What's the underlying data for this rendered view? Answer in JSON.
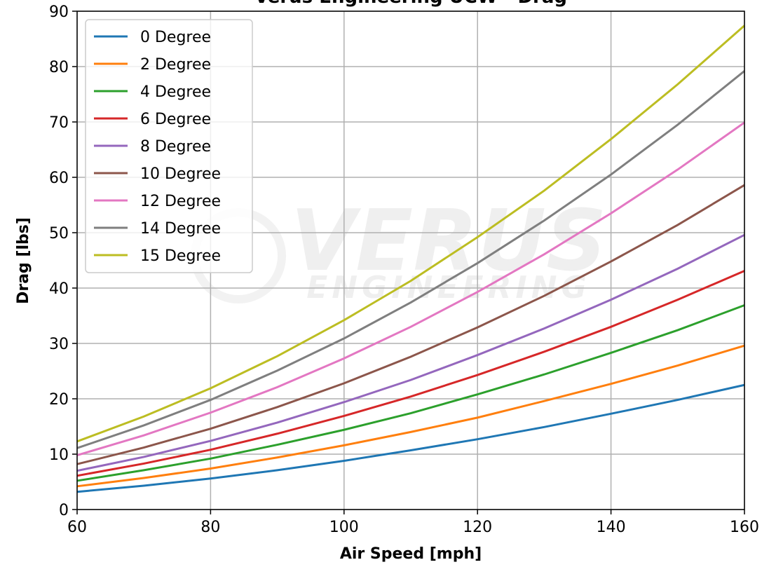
{
  "chart_data": {
    "type": "line",
    "title": "Verus Engineering UCW - Drag",
    "x_label": "Air Speed [mph]",
    "y_label": "Drag [lbs]",
    "watermark": {
      "text": "VERUS",
      "subtext": "ENGINEERING"
    },
    "x": [
      60,
      70,
      80,
      90,
      100,
      110,
      120,
      130,
      140,
      150,
      160
    ],
    "xlim": [
      60,
      160
    ],
    "xticks": [
      60,
      80,
      100,
      120,
      140,
      160
    ],
    "ylim": [
      0,
      90
    ],
    "yticks": [
      0,
      10,
      20,
      30,
      40,
      50,
      60,
      70,
      80,
      90
    ],
    "grid": true,
    "legend": "upper left",
    "series": [
      {
        "name": "0 Degree",
        "color": "#1f77b4",
        "values": [
          3.2,
          4.3,
          5.6,
          7.1,
          8.8,
          10.7,
          12.7,
          14.9,
          17.3,
          19.8,
          22.5
        ]
      },
      {
        "name": "2 Degree",
        "color": "#ff7f0e",
        "values": [
          4.2,
          5.7,
          7.4,
          9.4,
          11.6,
          14.0,
          16.6,
          19.6,
          22.7,
          26.0,
          29.6
        ]
      },
      {
        "name": "4 Degree",
        "color": "#2ca02c",
        "values": [
          5.2,
          7.1,
          9.2,
          11.7,
          14.4,
          17.4,
          20.8,
          24.4,
          28.3,
          32.4,
          36.9
        ]
      },
      {
        "name": "6 Degree",
        "color": "#d62728",
        "values": [
          6.1,
          8.3,
          10.8,
          13.7,
          16.9,
          20.4,
          24.3,
          28.5,
          33.0,
          37.9,
          43.1
        ]
      },
      {
        "name": "8 Degree",
        "color": "#9467bd",
        "values": [
          7.0,
          9.5,
          12.4,
          15.7,
          19.4,
          23.4,
          27.9,
          32.7,
          37.9,
          43.5,
          49.6
        ]
      },
      {
        "name": "10 Degree",
        "color": "#8c564b",
        "values": [
          8.2,
          11.2,
          14.6,
          18.5,
          22.8,
          27.6,
          32.9,
          38.6,
          44.8,
          51.4,
          58.6
        ]
      },
      {
        "name": "12 Degree",
        "color": "#e377c2",
        "values": [
          9.8,
          13.4,
          17.5,
          22.1,
          27.3,
          33.0,
          39.3,
          46.1,
          53.5,
          61.4,
          69.9
        ]
      },
      {
        "name": "14 Degree",
        "color": "#7f7f7f",
        "values": [
          11.1,
          15.2,
          19.8,
          25.1,
          30.9,
          37.4,
          44.5,
          52.2,
          60.5,
          69.5,
          79.2
        ]
      },
      {
        "name": "15 Degree",
        "color": "#bcbd22",
        "values": [
          12.3,
          16.8,
          21.9,
          27.7,
          34.2,
          41.3,
          49.2,
          57.6,
          66.9,
          76.8,
          87.4
        ]
      }
    ]
  }
}
